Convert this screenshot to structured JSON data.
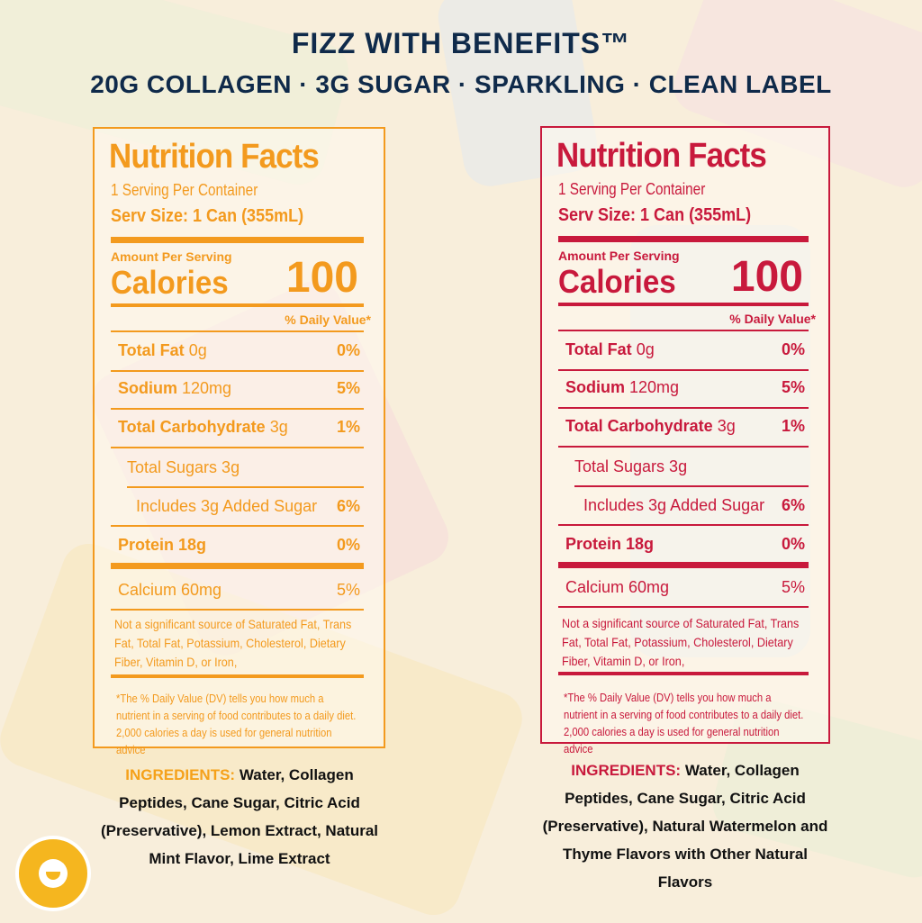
{
  "header": {
    "title": "FIZZ WITH BENEFITS™",
    "subtitle": "20G COLLAGEN · 3G SUGAR · SPARKLING · CLEAN LABEL"
  },
  "colors": {
    "left": "#f39a1e",
    "right": "#c8193c",
    "title": "#0f2a4a",
    "background": "#f8eedb"
  },
  "labels": [
    {
      "heading": "Nutrition Facts",
      "servings": "1 Serving Per Container",
      "serv_size": "Serv Size: 1 Can (355mL)",
      "amount": "Amount  Per Serving",
      "calories_label": "Calories",
      "calories": "100",
      "dv_header": "% Daily Value*",
      "rows": [
        {
          "name": "Total Fat",
          "amt": "0g",
          "pct": "0%"
        },
        {
          "name": "Sodium",
          "amt": "120mg",
          "pct": "5%"
        },
        {
          "name": "Total Carbohydrate",
          "amt": "3g",
          "pct": "1%"
        },
        {
          "name": "",
          "amt": "Total Sugars  3g",
          "pct": ""
        },
        {
          "name": "",
          "amt": "Includes 3g Added Sugar",
          "pct": "6%"
        },
        {
          "name": "Protein 18g",
          "amt": "",
          "pct": "0%"
        },
        {
          "name": "",
          "amt": "Calcium 60mg",
          "pct": "5%"
        }
      ],
      "note": "Not a significant source of Saturated Fat, Trans Fat, Total Fat, Potassium, Cholesterol, Dietary Fiber, Vitamin D, or Iron,",
      "footnote": "*The % Daily Value (DV) tells you how much a nutrient in a serving of food contributes to a daily diet. 2,000 calories a day is used for general nutrition advice",
      "ingredients_label": "INGREDIENTS:",
      "ingredients": "Water, Collagen Peptides, Cane Sugar, Citric Acid (Preservative), Lemon Extract, Natural Mint Flavor, Lime Extract"
    },
    {
      "heading": "Nutrition Facts",
      "servings": "1 Serving Per Container",
      "serv_size": "Serv Size: 1 Can (355mL)",
      "amount": "Amount  Per Serving",
      "calories_label": "Calories",
      "calories": "100",
      "dv_header": "% Daily Value*",
      "rows": [
        {
          "name": "Total Fat",
          "amt": "0g",
          "pct": "0%"
        },
        {
          "name": "Sodium",
          "amt": "120mg",
          "pct": "5%"
        },
        {
          "name": "Total Carbohydrate",
          "amt": "3g",
          "pct": "1%"
        },
        {
          "name": "",
          "amt": "Total Sugars  3g",
          "pct": ""
        },
        {
          "name": "",
          "amt": "Includes 3g Added Sugar",
          "pct": "6%"
        },
        {
          "name": "Protein 18g",
          "amt": "",
          "pct": "0%"
        },
        {
          "name": "",
          "amt": "Calcium 60mg",
          "pct": "5%"
        }
      ],
      "note": "Not a significant source of Saturated Fat, Trans Fat, Total Fat, Potassium, Cholesterol, Dietary Fiber, Vitamin D, or Iron,",
      "footnote": "*The % Daily Value (DV) tells you how much a nutrient in a serving of food contributes to a daily diet. 2,000 calories a day is used for general nutrition advice",
      "ingredients_label": "INGREDIENTS:",
      "ingredients": "Water, Collagen Peptides, Cane Sugar, Citric Acid (Preservative), Natural Watermelon and Thyme Flavors with Other Natural Flavors"
    }
  ]
}
